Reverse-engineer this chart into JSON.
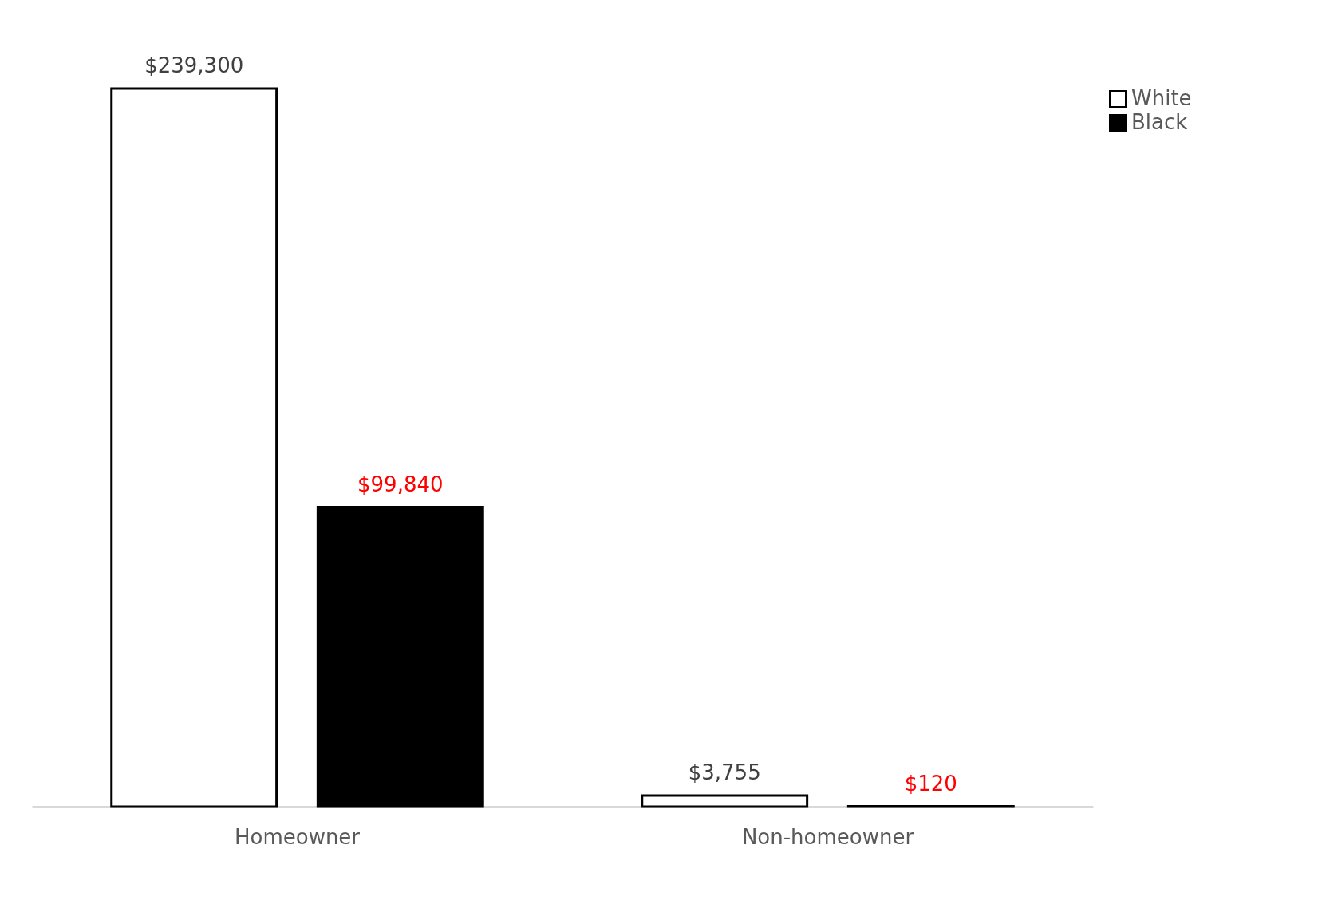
{
  "chart_data": {
    "type": "bar",
    "categories": [
      "Homeowner",
      "Non-homeowner"
    ],
    "series": [
      {
        "name": "White",
        "color": "#ffffff",
        "values": [
          239300,
          3755
        ],
        "value_labels": [
          "$239,300",
          "$3,755"
        ]
      },
      {
        "name": "Black",
        "color": "#000000",
        "values": [
          99840,
          120
        ],
        "value_labels": [
          "$99,840",
          "$120"
        ]
      }
    ],
    "legend": "right",
    "grid": false
  }
}
